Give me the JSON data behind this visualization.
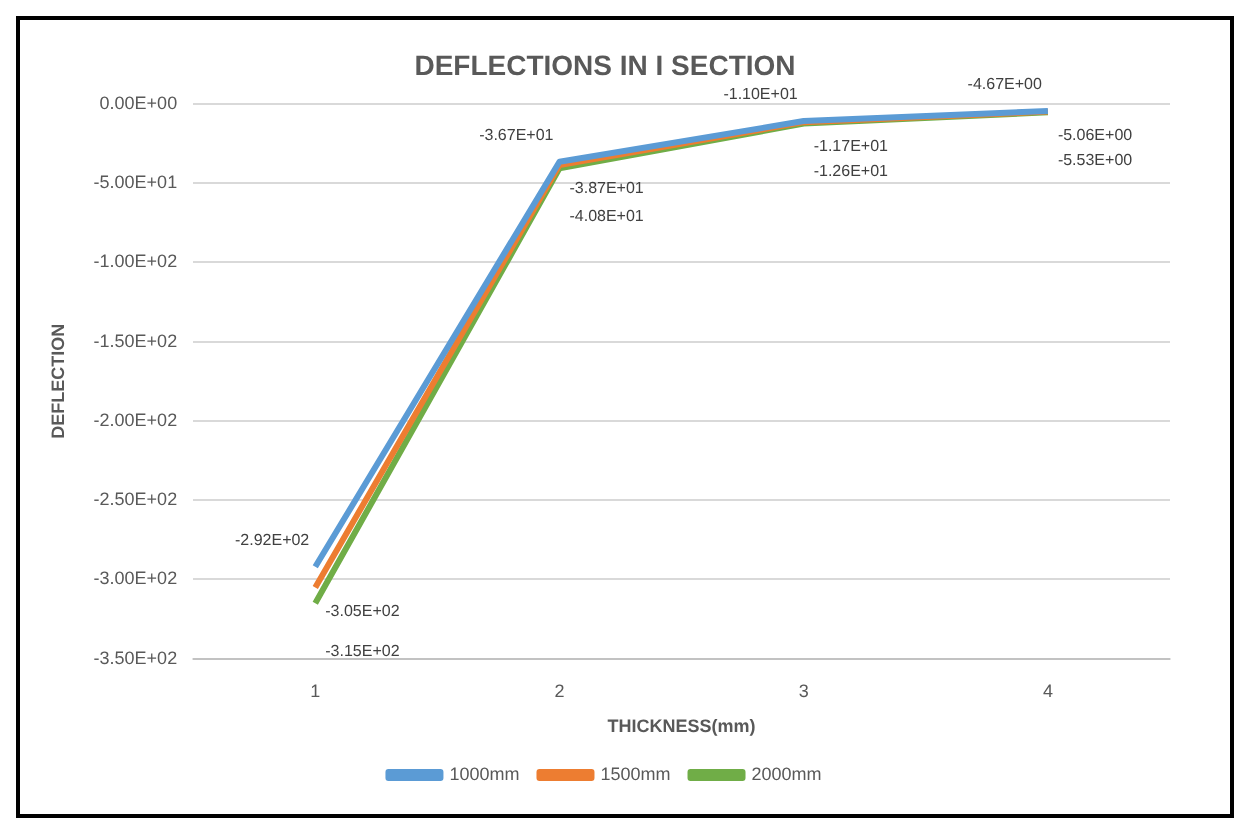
{
  "chart_data": {
    "type": "line",
    "title": "DEFLECTIONS IN I SECTION",
    "xlabel": "THICKNESS(mm)",
    "ylabel": "DEFLECTION",
    "categories": [
      "1",
      "2",
      "3",
      "4"
    ],
    "series": [
      {
        "name": "1000mm",
        "color": "#5b9bd5",
        "values": [
          -292,
          -36.7,
          -11.0,
          -4.67
        ],
        "value_labels": [
          "-2.92E+02",
          "-3.67E+01",
          "-1.10E+01",
          "-4.67E+00"
        ]
      },
      {
        "name": "1500mm",
        "color": "#ed7d31",
        "values": [
          -305,
          -38.7,
          -11.7,
          -5.06
        ],
        "value_labels": [
          "-3.05E+02",
          "-3.87E+01",
          "-1.17E+01",
          "-5.06E+00"
        ]
      },
      {
        "name": "2000mm",
        "color": "#70ad47",
        "values": [
          -315,
          -40.8,
          -12.6,
          -5.53
        ],
        "value_labels": [
          "-3.15E+02",
          "-4.08E+01",
          "-1.26E+01",
          "-5.53E+00"
        ]
      }
    ],
    "ylim": [
      -350,
      0
    ],
    "yticks": [
      {
        "value": -350,
        "label": "-3.50E+02"
      },
      {
        "value": -300,
        "label": "-3.00E+02"
      },
      {
        "value": -250,
        "label": "-2.50E+02"
      },
      {
        "value": -200,
        "label": "-2.00E+02"
      },
      {
        "value": -150,
        "label": "-1.50E+02"
      },
      {
        "value": -100,
        "label": "-1.00E+02"
      },
      {
        "value": -50,
        "label": "-5.00E+01"
      },
      {
        "value": 0,
        "label": "0.00E+00"
      }
    ],
    "grid": "y",
    "legend": "bottom",
    "marker": "none",
    "line_style": "solid"
  }
}
